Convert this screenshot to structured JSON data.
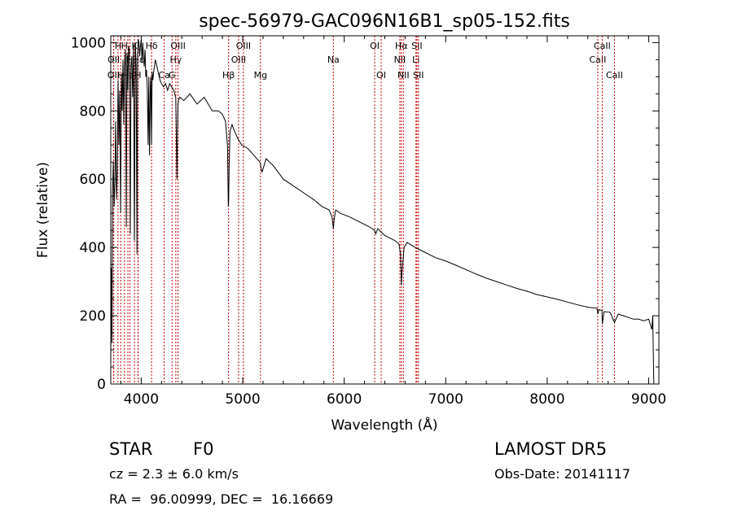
{
  "chart_data": {
    "type": "line",
    "title": "spec-56979-GAC096N16B1_sp05-152.fits",
    "xlabel": "Wavelength (Å)",
    "ylabel": "Flux (relative)",
    "xlim": [
      3700,
      9100
    ],
    "ylim": [
      0,
      1020
    ],
    "xticks": [
      4000,
      5000,
      6000,
      7000,
      8000,
      9000
    ],
    "yticks": [
      0,
      200,
      400,
      600,
      800,
      1000
    ],
    "grid": false,
    "series": [
      {
        "x": [
          3700,
          3706,
          3712,
          3718,
          3725,
          3733,
          3740,
          3748,
          3756,
          3764,
          3772,
          3780,
          3788,
          3797,
          3805,
          3812,
          3820,
          3828,
          3836,
          3845,
          3853,
          3860,
          3868,
          3876,
          3884,
          3892,
          3900,
          3908,
          3916,
          3925,
          3933,
          3942,
          3950,
          3958,
          3965,
          3970,
          3978,
          3985,
          3992,
          4000,
          4008,
          4015,
          4022,
          4030,
          4038,
          4045,
          4052,
          4060,
          4068,
          4075,
          4082,
          4090,
          4095,
          4101,
          4108,
          4115,
          4125,
          4140,
          4155,
          4170,
          4185,
          4200,
          4220,
          4240,
          4260,
          4280,
          4300,
          4320,
          4340,
          4352,
          4361,
          4366,
          4380,
          4420,
          4480,
          4550,
          4620,
          4700,
          4760,
          4800,
          4830,
          4850,
          4858,
          4862,
          4866,
          4875,
          4895,
          4920,
          4950,
          4990,
          5050,
          5110,
          5170,
          5190,
          5230,
          5300,
          5400,
          5500,
          5600,
          5700,
          5780,
          5850,
          5880,
          5893,
          5900,
          5915,
          5960,
          6050,
          6150,
          6250,
          6300,
          6310,
          6330,
          6400,
          6500,
          6540,
          6555,
          6563,
          6570,
          6590,
          6620,
          6700,
          6800,
          6900,
          7000,
          7100,
          7200,
          7300,
          7400,
          7500,
          7600,
          7700,
          7800,
          7900,
          8000,
          8100,
          8200,
          8300,
          8400,
          8490,
          8498,
          8510,
          8540,
          8542,
          8560,
          8620,
          8662,
          8700,
          8750,
          8800,
          8850,
          8900,
          8950,
          9000,
          9030,
          9040,
          9045,
          9050
        ],
        "y": [
          60,
          340,
          120,
          560,
          650,
          520,
          590,
          770,
          540,
          620,
          890,
          700,
          860,
          500,
          910,
          800,
          950,
          760,
          930,
          980,
          460,
          970,
          860,
          990,
          980,
          440,
          930,
          960,
          840,
          990,
          420,
          1000,
          930,
          380,
          960,
          1010,
          1000,
          960,
          990,
          1010,
          940,
          1000,
          960,
          930,
          980,
          900,
          920,
          860,
          700,
          900,
          670,
          880,
          900,
          700,
          915,
          890,
          920,
          950,
          930,
          910,
          890,
          880,
          870,
          880,
          860,
          880,
          870,
          860,
          840,
          600,
          820,
          830,
          840,
          830,
          850,
          820,
          840,
          800,
          800,
          790,
          770,
          700,
          520,
          540,
          630,
          740,
          760,
          740,
          720,
          700,
          690,
          670,
          650,
          620,
          660,
          640,
          600,
          580,
          560,
          540,
          520,
          510,
          490,
          455,
          480,
          510,
          500,
          490,
          475,
          460,
          450,
          440,
          455,
          435,
          420,
          410,
          380,
          290,
          330,
          400,
          415,
          400,
          385,
          370,
          360,
          348,
          335,
          322,
          310,
          300,
          290,
          280,
          272,
          262,
          255,
          248,
          240,
          232,
          225,
          222,
          205,
          218,
          215,
          175,
          212,
          210,
          180,
          205,
          200,
          195,
          190,
          190,
          185,
          190,
          160,
          200,
          100,
          0
        ]
      }
    ],
    "lines": [
      {
        "x": 3727,
        "label": "OII",
        "row": 3
      },
      {
        "x": 3729,
        "label": "OII",
        "row": 2
      },
      {
        "x": 3771,
        "label": "H",
        "row": 1
      },
      {
        "x": 3798,
        "label": "H",
        "row": 3
      },
      {
        "x": 3835,
        "label": "H",
        "row": 1
      },
      {
        "x": 3869,
        "label": "He",
        "row": 3
      },
      {
        "x": 3889,
        "label": "H",
        "row": 2
      },
      {
        "x": 3934,
        "label": "K",
        "row": 1
      },
      {
        "x": 3968,
        "label": "H",
        "row": 3
      },
      {
        "x": 3970,
        "label": "Hε",
        "row": 2
      },
      {
        "x": 4102,
        "label": "Hδ",
        "row": 1
      },
      {
        "x": 4226,
        "label": "Ca",
        "row": 3
      },
      {
        "x": 4304,
        "label": "G",
        "row": 3
      },
      {
        "x": 4341,
        "label": "Hγ",
        "row": 2
      },
      {
        "x": 4363,
        "label": "OIII",
        "row": 1
      },
      {
        "x": 4861,
        "label": "Hβ",
        "row": 3
      },
      {
        "x": 4959,
        "label": "OIII",
        "row": 2
      },
      {
        "x": 5007,
        "label": "OIII",
        "row": 1
      },
      {
        "x": 5175,
        "label": "Mg",
        "row": 3
      },
      {
        "x": 5893,
        "label": "Na",
        "row": 2
      },
      {
        "x": 6300,
        "label": "OI",
        "row": 1
      },
      {
        "x": 6364,
        "label": "OI",
        "row": 3
      },
      {
        "x": 6548,
        "label": "NII",
        "row": 2
      },
      {
        "x": 6563,
        "label": "Hα",
        "row": 1
      },
      {
        "x": 6583,
        "label": "NII",
        "row": 3
      },
      {
        "x": 6707,
        "label": "Li",
        "row": 2
      },
      {
        "x": 6716,
        "label": "SII",
        "row": 1
      },
      {
        "x": 6731,
        "label": "SII",
        "row": 3
      },
      {
        "x": 8498,
        "label": "CaII",
        "row": 2
      },
      {
        "x": 8542,
        "label": "CaII",
        "row": 1
      },
      {
        "x": 8662,
        "label": "CaII",
        "row": 3
      }
    ]
  },
  "info": {
    "class": "STAR",
    "subclass": "F0",
    "survey": "LAMOST DR5",
    "cz": "cz = 2.3 ± 6.0 km/s",
    "obs_date": "Obs-Date: 20141117",
    "coords": "RA =  96.00999, DEC =  16.16669"
  }
}
